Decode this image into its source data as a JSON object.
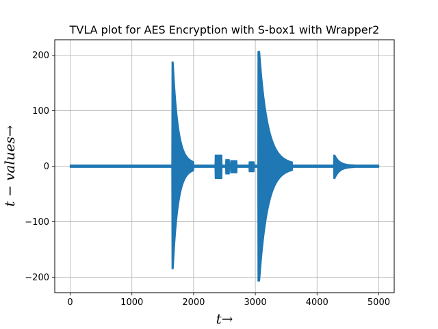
{
  "chart_data": {
    "type": "line",
    "title": "TVLA plot for AES Encryption with S-box1 with Wrapper2",
    "xlabel": "t→",
    "ylabel": "t − values→",
    "xlim": [
      -250,
      5250
    ],
    "ylim": [
      -228,
      228
    ],
    "x_ticks": [
      0,
      1000,
      2000,
      3000,
      4000,
      5000
    ],
    "x_tick_labels": [
      "0",
      "1000",
      "2000",
      "3000",
      "4000",
      "5000"
    ],
    "y_ticks": [
      -200,
      -100,
      0,
      100,
      200
    ],
    "y_tick_labels": [
      "−200",
      "−100",
      "0",
      "100",
      "200"
    ],
    "grid": true,
    "series": [
      {
        "color": "#1f77b4",
        "x_range": [
          0,
          5000
        ],
        "baseline_noise": 2,
        "bursts": [
          {
            "start": 1650,
            "end": 1670,
            "peak_pos": 188,
            "peak_neg": -185,
            "decay_end": 2000,
            "tail_amp": 5
          },
          {
            "start": 2350,
            "end": 2460,
            "peak_pos": 20,
            "peak_neg": -22,
            "decay_end": 2460,
            "tail_amp": 8
          },
          {
            "start": 2520,
            "end": 2580,
            "peak_pos": 12,
            "peak_neg": -14,
            "decay_end": 2580,
            "tail_amp": 6
          },
          {
            "start": 2600,
            "end": 2700,
            "peak_pos": 10,
            "peak_neg": -12,
            "decay_end": 2700,
            "tail_amp": 6
          },
          {
            "start": 2900,
            "end": 2980,
            "peak_pos": 8,
            "peak_neg": -10,
            "decay_end": 2980,
            "tail_amp": 5
          },
          {
            "start": 3040,
            "end": 3070,
            "peak_pos": 207,
            "peak_neg": -207,
            "decay_end": 3600,
            "tail_amp": 4
          },
          {
            "start": 4270,
            "end": 4290,
            "peak_pos": 20,
            "peak_neg": -22,
            "decay_end": 4600,
            "tail_amp": 2
          }
        ]
      }
    ]
  }
}
